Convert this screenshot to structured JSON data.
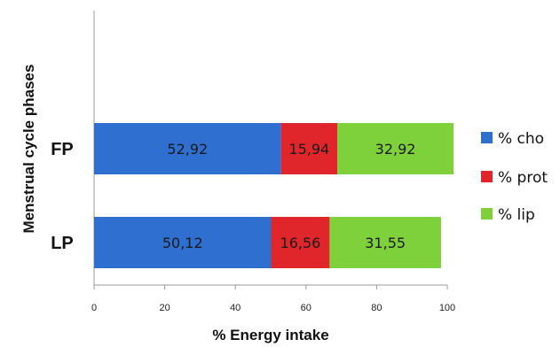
{
  "chart_data": {
    "type": "bar",
    "orientation": "horizontal",
    "stacked": true,
    "categories": [
      "FP",
      "LP"
    ],
    "series": [
      {
        "name": "% cho",
        "values": [
          52.92,
          50.12
        ],
        "labels": [
          "52,92",
          "50,12"
        ],
        "color": "#2e6fd0"
      },
      {
        "name": "% prot",
        "values": [
          15.94,
          16.56
        ],
        "labels": [
          "15,94",
          "16,56"
        ],
        "color": "#e0262b"
      },
      {
        "name": "% lip",
        "values": [
          32.92,
          31.55
        ],
        "labels": [
          "32,92",
          "31,55"
        ],
        "color": "#7fd13b"
      }
    ],
    "title": "",
    "xlabel": "% Energy intake",
    "ylabel": "Menstrual cycle phases",
    "xlim": [
      0,
      100
    ],
    "xticks": [
      0,
      20,
      40,
      60,
      80,
      100
    ],
    "grid": false,
    "legend": "right"
  }
}
